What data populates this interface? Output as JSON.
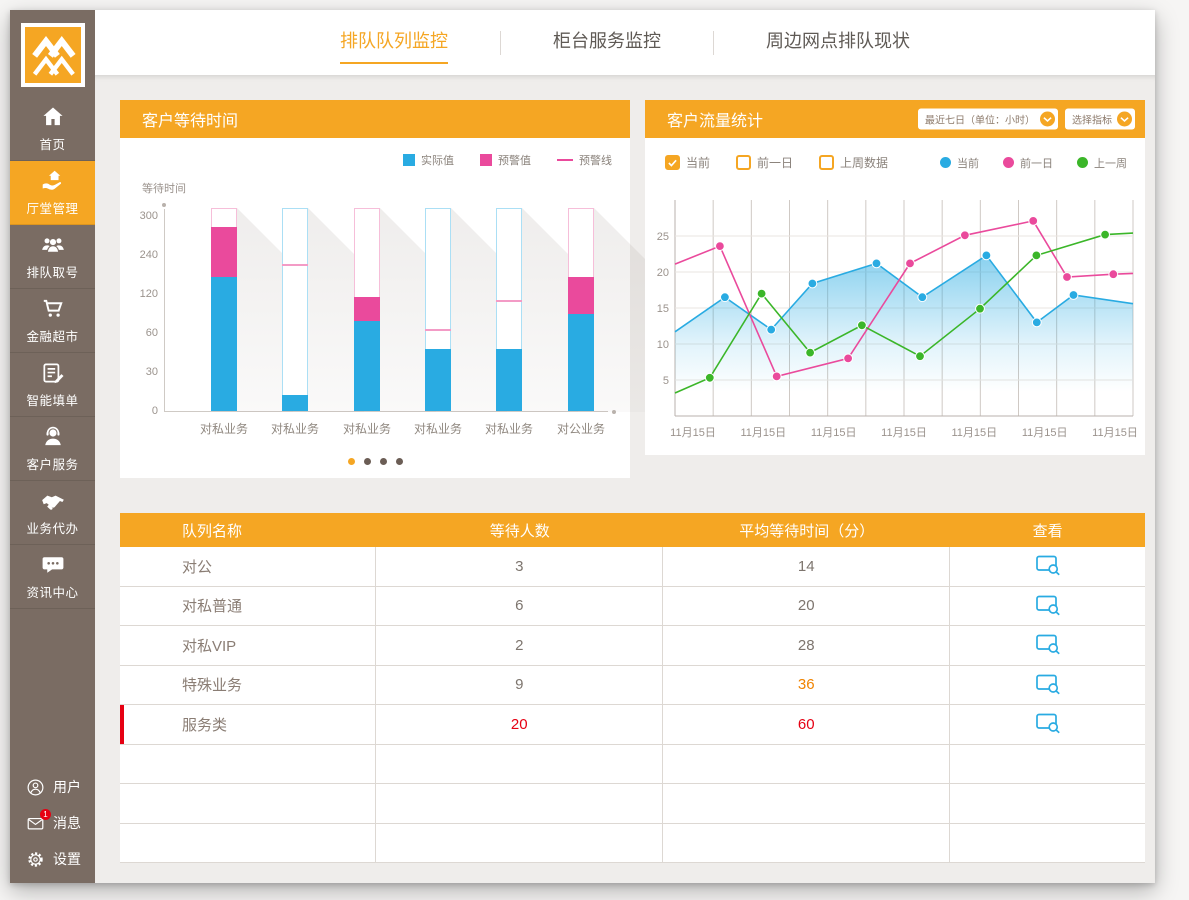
{
  "colors": {
    "accent_orange": "#F5A623",
    "sidebar_brown": "#7A6C63",
    "blue": "#29ABE2",
    "pink": "#EA4A9C",
    "green": "#3BB629",
    "alert_red": "#E60012",
    "warn_orange": "#F08300"
  },
  "sidebar": {
    "nav": [
      {
        "label": "首页",
        "icon": "home-icon",
        "active": false
      },
      {
        "label": "厅堂管理",
        "icon": "hall-management-icon",
        "active": true
      },
      {
        "label": "排队取号",
        "icon": "queue-number-icon",
        "active": false
      },
      {
        "label": "金融超市",
        "icon": "financial-market-icon",
        "active": false
      },
      {
        "label": "智能填单",
        "icon": "smart-form-icon",
        "active": false
      },
      {
        "label": "客户服务",
        "icon": "customer-service-icon",
        "active": false
      },
      {
        "label": "业务代办",
        "icon": "business-agency-icon",
        "active": false
      },
      {
        "label": "资讯中心",
        "icon": "info-center-icon",
        "active": false
      }
    ],
    "utilities": [
      {
        "label": "用户",
        "icon": "user-icon",
        "badge": ""
      },
      {
        "label": "消息",
        "icon": "message-icon",
        "badge": "1"
      },
      {
        "label": "设置",
        "icon": "settings-icon",
        "badge": ""
      }
    ]
  },
  "tabs": [
    {
      "label": "排队队列监控",
      "active": true
    },
    {
      "label": "柜台服务监控",
      "active": false
    },
    {
      "label": "周边网点排队现状",
      "active": false
    }
  ],
  "panels": {
    "waiting_time": {
      "title": "客户等待时间",
      "ylabel": "等待时间",
      "legend": [
        {
          "label": "实际值",
          "swatch": "square",
          "color": "#29ABE2"
        },
        {
          "label": "预警值",
          "swatch": "square",
          "color": "#EA4A9C"
        },
        {
          "label": "预警线",
          "swatch": "line",
          "color": "#EA4A9C"
        }
      ],
      "pagination": {
        "count": 4,
        "active_index": 0
      }
    },
    "flow": {
      "title": "客户流量统计",
      "dropdowns": [
        {
          "label": "最近七日（单位：小时）"
        },
        {
          "label": "选择指标"
        }
      ],
      "checkboxes": [
        {
          "label": "当前",
          "checked": true
        },
        {
          "label": "前一日",
          "checked": false
        },
        {
          "label": "上周数据",
          "checked": false
        }
      ],
      "legend": [
        {
          "label": "当前",
          "color": "#29ABE2"
        },
        {
          "label": "前一日",
          "color": "#EA4A9C"
        },
        {
          "label": "上一周",
          "color": "#3BB629"
        }
      ]
    }
  },
  "chart_data": [
    {
      "type": "bar",
      "title": "客户等待时间",
      "ylabel": "等待时间",
      "y_ticks": [
        0,
        30,
        60,
        120,
        240,
        300
      ],
      "categories": [
        "对私业务",
        "对私业务",
        "对私业务",
        "对私业务",
        "对私业务",
        "对公业务"
      ],
      "series": [
        {
          "name": "实际值",
          "color": "#29ABE2",
          "values": [
            172,
            12,
            78,
            48,
            48,
            90
          ]
        },
        {
          "name": "预警值",
          "color": "#EA4A9C",
          "values": [
            283,
            null,
            115,
            null,
            null,
            172
          ]
        },
        {
          "name": "预警线",
          "color": "#EA4A9C",
          "values": [
            null,
            205,
            null,
            63,
            108,
            null
          ]
        }
      ],
      "outline_colors": [
        "pink",
        "blue",
        "pink",
        "blue",
        "blue",
        "pink"
      ],
      "legend_position": "top-right",
      "grid": false
    },
    {
      "type": "line",
      "title": "客户流量统计",
      "ylim": [
        0,
        30
      ],
      "y_ticks": [
        5,
        10,
        15,
        20,
        25
      ],
      "x_labels": [
        "11月15日",
        "11月15日",
        "11月15日",
        "11月15日",
        "11月15日",
        "11月15日",
        "11月15日"
      ],
      "grid": true,
      "legend_position": "top-right",
      "series": [
        {
          "name": "当前",
          "color": "#29ABE2",
          "area": true,
          "points": [
            [
              0,
              11.7
            ],
            [
              0.109,
              16.5
            ],
            [
              0.21,
              12
            ],
            [
              0.3,
              18.4
            ],
            [
              0.44,
              21.2
            ],
            [
              0.54,
              16.5
            ],
            [
              0.68,
              22.3
            ],
            [
              0.79,
              13
            ],
            [
              0.87,
              16.8
            ],
            [
              1,
              15.6
            ]
          ]
        },
        {
          "name": "前一日",
          "color": "#EA4A9C",
          "area": false,
          "points": [
            [
              0,
              21.1
            ],
            [
              0.098,
              23.6
            ],
            [
              0.222,
              5.5
            ],
            [
              0.378,
              8.0
            ],
            [
              0.513,
              21.2
            ],
            [
              0.633,
              25.1
            ],
            [
              0.782,
              27.1
            ],
            [
              0.856,
              19.3
            ],
            [
              0.957,
              19.7
            ],
            [
              1,
              19.8
            ]
          ]
        },
        {
          "name": "上一周",
          "color": "#3BB629",
          "area": false,
          "points": [
            [
              0,
              3.2
            ],
            [
              0.076,
              5.3
            ],
            [
              0.189,
              17.0
            ],
            [
              0.295,
              8.8
            ],
            [
              0.408,
              12.6
            ],
            [
              0.535,
              8.3
            ],
            [
              0.666,
              14.9
            ],
            [
              0.789,
              22.3
            ],
            [
              0.939,
              25.2
            ],
            [
              1,
              25.4
            ]
          ]
        }
      ]
    }
  ],
  "table": {
    "headers": [
      "队列名称",
      "等待人数",
      "平均等待时间（分）",
      "查看"
    ],
    "rows": [
      {
        "name": "对公",
        "waiting": "3",
        "avg": "14",
        "waiting_class": "",
        "avg_class": "",
        "marker": false
      },
      {
        "name": "对私普通",
        "waiting": "6",
        "avg": "20",
        "waiting_class": "",
        "avg_class": "",
        "marker": false
      },
      {
        "name": "对私VIP",
        "waiting": "2",
        "avg": "28",
        "waiting_class": "",
        "avg_class": "",
        "marker": false
      },
      {
        "name": "特殊业务",
        "waiting": "9",
        "avg": "36",
        "waiting_class": "",
        "avg_class": "orange",
        "marker": false
      },
      {
        "name": "服务类",
        "waiting": "20",
        "avg": "60",
        "waiting_class": "red",
        "avg_class": "red",
        "marker": true
      }
    ],
    "empty_rows": 3
  }
}
